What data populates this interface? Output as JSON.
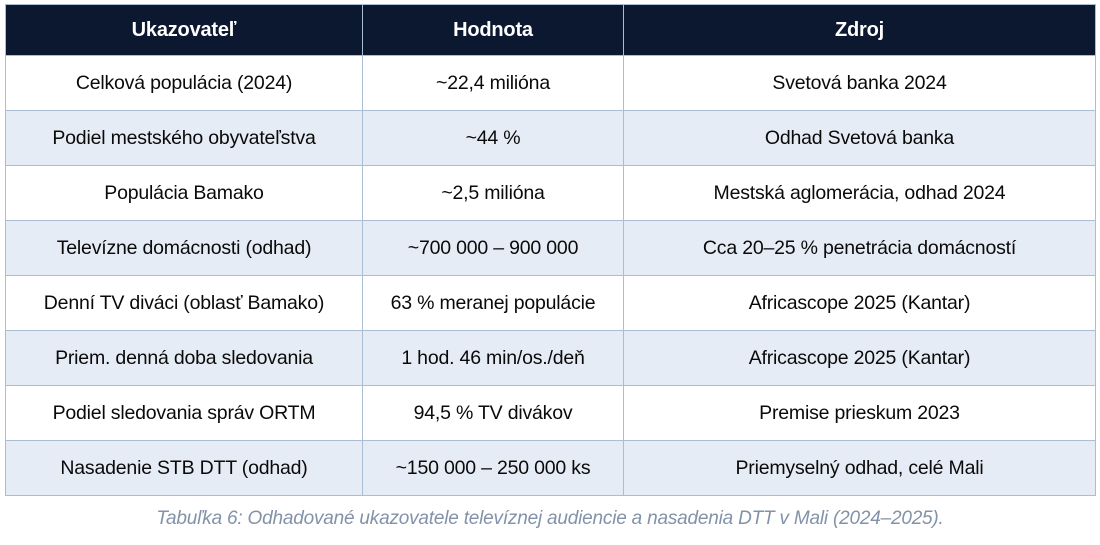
{
  "table": {
    "columns": [
      "Ukazovateľ",
      "Hodnota",
      "Zdroj"
    ],
    "rows": [
      [
        "Celková populácia (2024)",
        "~22,4 milióna",
        "Svetová banka 2024"
      ],
      [
        "Podiel mestského obyvateľstva",
        "~44 %",
        "Odhad Svetová banka"
      ],
      [
        "Populácia Bamako",
        "~2,5 milióna",
        "Mestská aglomerácia, odhad 2024"
      ],
      [
        "Televízne domácnosti (odhad)",
        "~700 000 – 900 000",
        "Cca 20–25 % penetrácia domácností"
      ],
      [
        "Denní TV diváci (oblasť Bamako)",
        "63 % meranej populácie",
        "Africascope 2025 (Kantar)"
      ],
      [
        "Priem. denná doba sledovania",
        "1 hod. 46 min/os./deň",
        "Africascope 2025 (Kantar)"
      ],
      [
        "Podiel sledovania správ ORTM",
        "94,5 % TV divákov",
        "Premise prieskum 2023"
      ],
      [
        "Nasadenie STB DTT (odhad)",
        "~150 000 – 250 000 ks",
        "Priemyselný odhad, celé Mali"
      ]
    ]
  },
  "caption": "Tabuľka 6: Odhadované ukazovatele televíznej audiencie a nasadenia DTT v Mali (2024–2025).",
  "colors": {
    "header_bg": "#0b1830",
    "header_text": "#ffffff",
    "row_bg": "#ffffff",
    "row_alt_bg": "#e6ecf5",
    "border": "#aabdd2",
    "cell_text": "#0a0a0a",
    "caption_text": "#8292a8"
  }
}
